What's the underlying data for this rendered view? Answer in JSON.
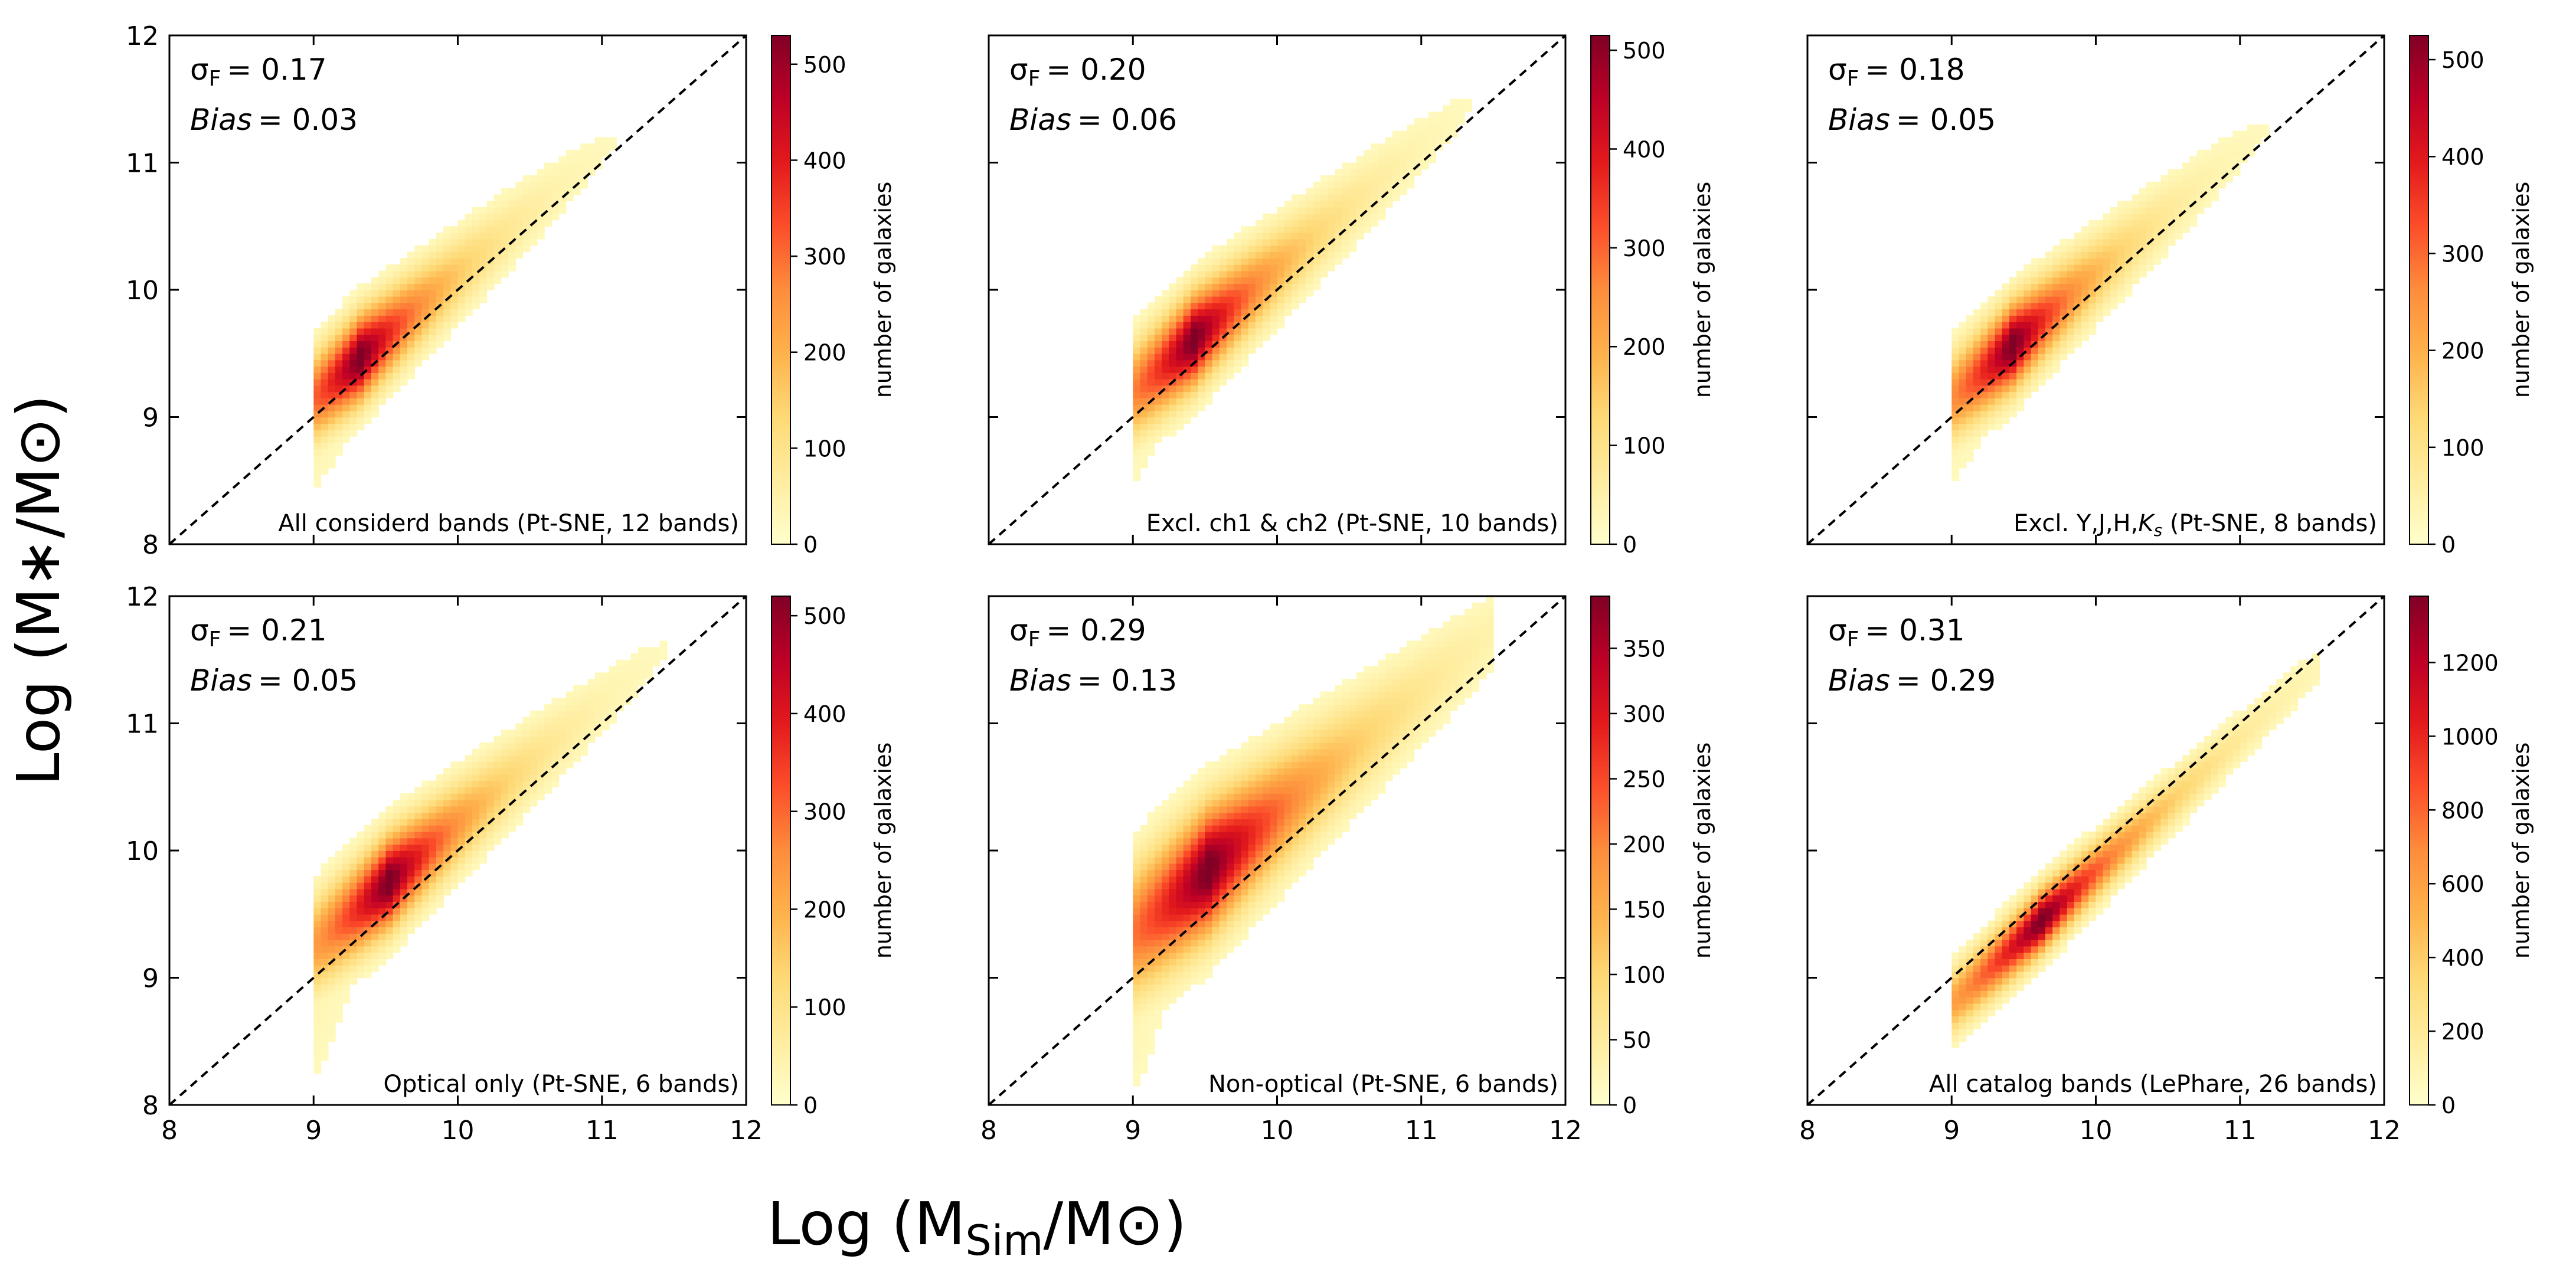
{
  "figure": {
    "ylabel": "Log (M∗/M⊙)",
    "xlabel": "Log (MSim/M⊙)",
    "xlabel_parts": {
      "pre": "Log (M",
      "sub": "Sim",
      "post": "/M⊙)"
    },
    "colorbar_label": "number of galaxies",
    "colormap": "YlOrRd",
    "colormap_stops": [
      "#ffffcc",
      "#ffeda0",
      "#fed976",
      "#feb24c",
      "#fd8d3c",
      "#fc4e2a",
      "#e31a1c",
      "#bd0026",
      "#800026"
    ]
  },
  "chart_data": [
    {
      "type": "heatmap",
      "label": "All considerd bands (Pt-SNE, 12 bands)",
      "sigma_label": "σF = 0.17",
      "sigma_pre": "σ",
      "sigma_sub": "F",
      "sigma_val": "= 0.17",
      "bias_label": "Bias = 0.03",
      "bias_word": "Bias",
      "bias_val": "= 0.03",
      "sigma_F": 0.17,
      "bias": 0.03,
      "xlim": [
        8,
        12
      ],
      "ylim": [
        8,
        12
      ],
      "xticks": [
        8,
        9,
        10,
        11,
        12
      ],
      "yticks": [
        8,
        9,
        10,
        11,
        12
      ],
      "show_xticklabels": false,
      "show_yticklabels": true,
      "colorbar": {
        "min": 0,
        "max": 530,
        "ticks": [
          0,
          100,
          200,
          300,
          400,
          500
        ]
      },
      "one_to_one_line": true,
      "density": {
        "x_start": 9.0,
        "x_end": 11.75,
        "offset": 0.15,
        "bias_spread": 0.0,
        "spread": 0.18,
        "low_tail": 0.55,
        "peak_at": 9.3,
        "decay": 0.55
      }
    },
    {
      "type": "heatmap",
      "label": "Excl. ch1 & ch2 (Pt-SNE, 10 bands)",
      "sigma_label": "σF = 0.20",
      "sigma_pre": "σ",
      "sigma_sub": "F",
      "sigma_val": "= 0.20",
      "bias_label": "Bias = 0.06",
      "bias_word": "Bias",
      "bias_val": "= 0.06",
      "sigma_F": 0.2,
      "bias": 0.06,
      "xlim": [
        8,
        12
      ],
      "ylim": [
        8,
        12
      ],
      "xticks": [
        8,
        9,
        10,
        11,
        12
      ],
      "yticks": [
        8,
        9,
        10,
        11,
        12
      ],
      "show_xticklabels": false,
      "show_yticklabels": false,
      "colorbar": {
        "min": 0,
        "max": 515,
        "ticks": [
          0,
          100,
          200,
          300,
          400,
          500
        ]
      },
      "one_to_one_line": true,
      "density": {
        "x_start": 9.0,
        "x_end": 11.6,
        "offset": 0.2,
        "bias_spread": 0.0,
        "spread": 0.2,
        "low_tail": 0.6,
        "peak_at": 9.4,
        "decay": 0.6
      }
    },
    {
      "type": "heatmap",
      "label": "Excl. Y,J,H,Ks (Pt-SNE, 8 bands)",
      "sigma_label": "σF = 0.18",
      "sigma_pre": "σ",
      "sigma_sub": "F",
      "sigma_val": "= 0.18",
      "bias_label": "Bias = 0.05",
      "bias_word": "Bias",
      "bias_val": "= 0.05",
      "label_pre": "Excl. Y,J,H,",
      "label_k": "K",
      "label_s": "s",
      "label_post": " (Pt-SNE, 8 bands)",
      "sigma_F": 0.18,
      "bias": 0.05,
      "xlim": [
        8,
        12
      ],
      "ylim": [
        8,
        12
      ],
      "xticks": [
        8,
        9,
        10,
        11,
        12
      ],
      "yticks": [
        8,
        9,
        10,
        11,
        12
      ],
      "show_xticklabels": false,
      "show_yticklabels": false,
      "colorbar": {
        "min": 0,
        "max": 525,
        "ticks": [
          0,
          100,
          200,
          300,
          400,
          500
        ]
      },
      "one_to_one_line": true,
      "density": {
        "x_start": 9.0,
        "x_end": 11.5,
        "offset": 0.15,
        "bias_spread": 0.0,
        "spread": 0.18,
        "low_tail": 0.6,
        "peak_at": 9.4,
        "decay": 0.55
      }
    },
    {
      "type": "heatmap",
      "label": "Optical only (Pt-SNE, 6 bands)",
      "sigma_label": "σF = 0.21",
      "sigma_pre": "σ",
      "sigma_sub": "F",
      "sigma_val": "= 0.21",
      "bias_label": "Bias = 0.05",
      "bias_word": "Bias",
      "bias_val": "= 0.05",
      "sigma_F": 0.21,
      "bias": 0.05,
      "xlim": [
        8,
        12
      ],
      "ylim": [
        8,
        12
      ],
      "xticks": [
        8,
        9,
        10,
        11,
        12
      ],
      "yticks": [
        8,
        9,
        10,
        11,
        12
      ],
      "show_xticklabels": true,
      "show_yticklabels": true,
      "colorbar": {
        "min": 0,
        "max": 520,
        "ticks": [
          0,
          100,
          200,
          300,
          400,
          500
        ]
      },
      "one_to_one_line": true,
      "density": {
        "x_start": 9.0,
        "x_end": 11.6,
        "offset": 0.25,
        "bias_spread": 0.0,
        "spread": 0.2,
        "low_tail": 1.0,
        "peak_at": 9.5,
        "decay": 0.6
      }
    },
    {
      "type": "heatmap",
      "label": "Non-optical (Pt-SNE, 6 bands)",
      "sigma_label": "σF = 0.29",
      "sigma_pre": "σ",
      "sigma_sub": "F",
      "sigma_val": "= 0.29",
      "bias_label": "Bias = 0.13",
      "bias_word": "Bias",
      "bias_val": "= 0.13",
      "sigma_F": 0.29,
      "bias": 0.13,
      "xlim": [
        8,
        12
      ],
      "ylim": [
        8,
        12
      ],
      "xticks": [
        8,
        9,
        10,
        11,
        12
      ],
      "yticks": [
        8,
        9,
        10,
        11,
        12
      ],
      "show_xticklabels": true,
      "show_yticklabels": false,
      "colorbar": {
        "min": 0,
        "max": 390,
        "ticks": [
          0,
          50,
          100,
          150,
          200,
          250,
          300,
          350
        ]
      },
      "one_to_one_line": true,
      "density": {
        "x_start": 9.0,
        "x_end": 11.45,
        "offset": 0.3,
        "bias_spread": 0.05,
        "spread": 0.3,
        "low_tail": 1.0,
        "peak_at": 9.5,
        "decay": 0.8
      }
    },
    {
      "type": "heatmap",
      "label": "All catalog bands (LePhare, 26 bands)",
      "sigma_label": "σF = 0.31",
      "sigma_pre": "σ",
      "sigma_sub": "F",
      "sigma_val": "= 0.31",
      "bias_label": "Bias = 0.29",
      "bias_word": "Bias",
      "bias_val": "= 0.29",
      "sigma_F": 0.31,
      "bias": 0.29,
      "xlim": [
        8,
        12
      ],
      "ylim": [
        8,
        12
      ],
      "xticks": [
        8,
        9,
        10,
        11,
        12
      ],
      "yticks": [
        8,
        9,
        10,
        11,
        12
      ],
      "show_xticklabels": true,
      "show_yticklabels": false,
      "colorbar": {
        "min": 0,
        "max": 1380,
        "ticks": [
          0,
          200,
          400,
          600,
          800,
          1000,
          1200
        ]
      },
      "one_to_one_line": true,
      "density": {
        "x_start": 9.0,
        "x_end": 11.5,
        "offset": -0.25,
        "bias_spread": 0.05,
        "spread": 0.12,
        "low_tail": 0.2,
        "peak_at": 9.6,
        "decay": 0.7
      }
    }
  ]
}
